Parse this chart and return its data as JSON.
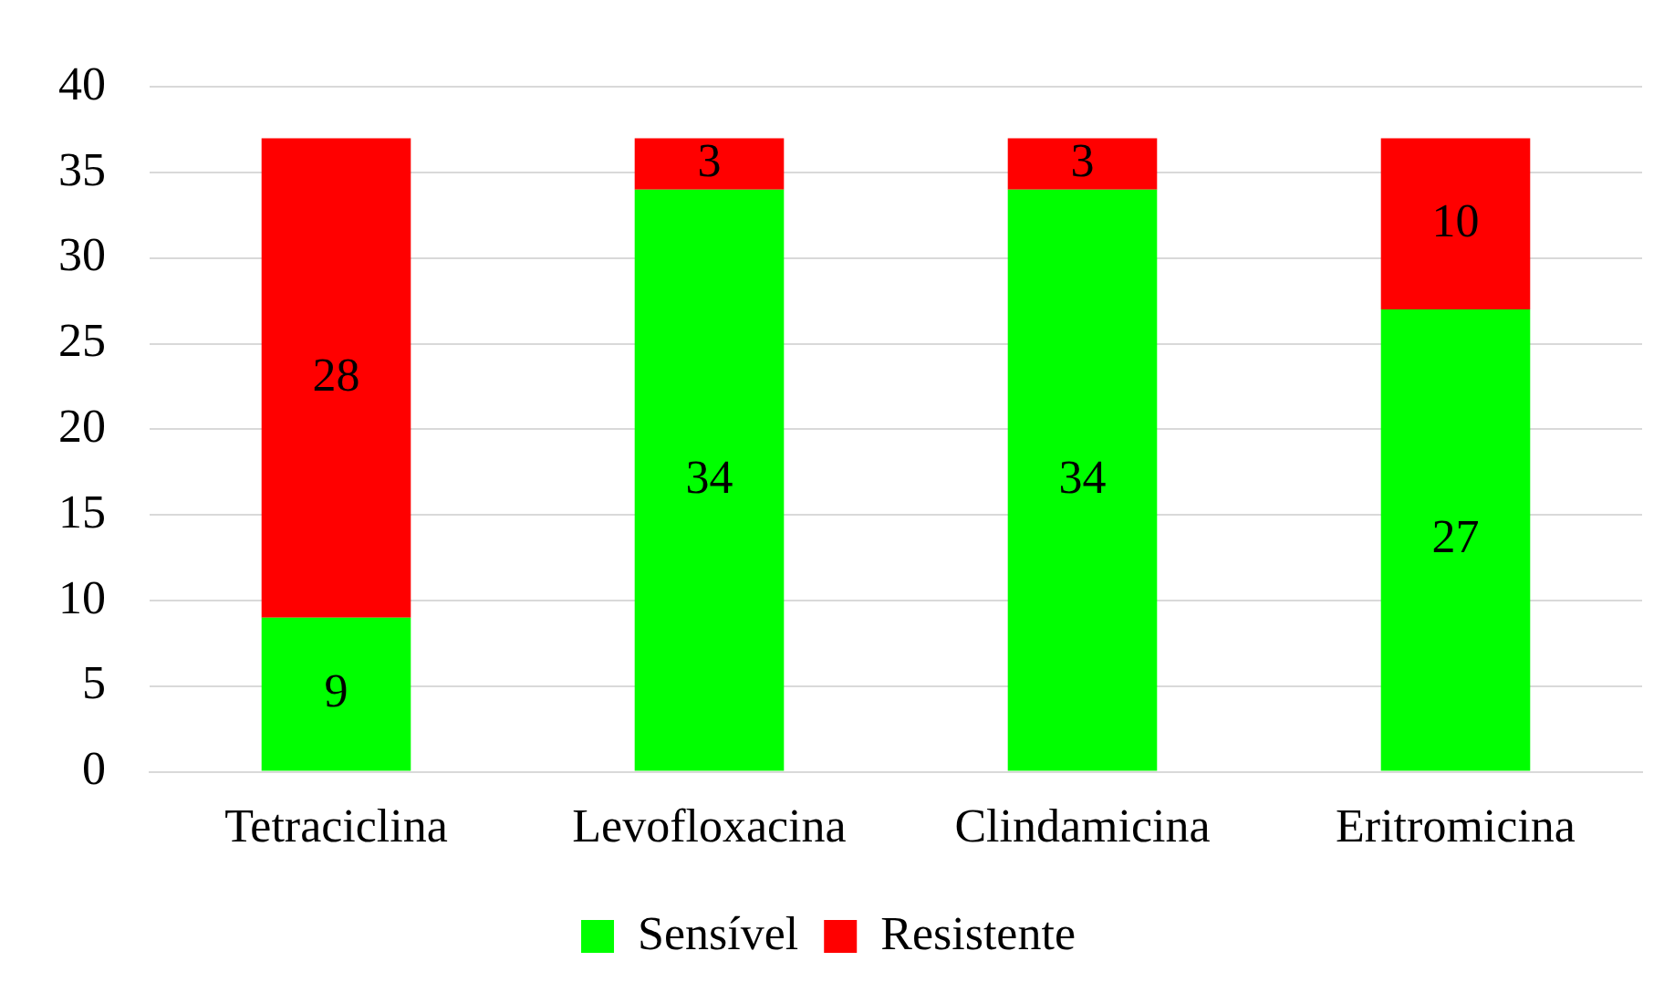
{
  "chart_data": {
    "type": "bar",
    "stacked": true,
    "categories": [
      "Tetraciclina",
      "Levofloxacina",
      "Clindamicina",
      "Eritromicina"
    ],
    "series": [
      {
        "name": "Sensível",
        "color": "#00ff00",
        "values": [
          9,
          34,
          34,
          27
        ]
      },
      {
        "name": "Resistente",
        "color": "#ff0000",
        "values": [
          28,
          3,
          3,
          10
        ]
      }
    ],
    "ylim": [
      0,
      40
    ],
    "yticks": [
      0,
      5,
      10,
      15,
      20,
      25,
      30,
      35,
      40
    ],
    "grid": "y",
    "legend": "bottom",
    "data_labels": true
  }
}
